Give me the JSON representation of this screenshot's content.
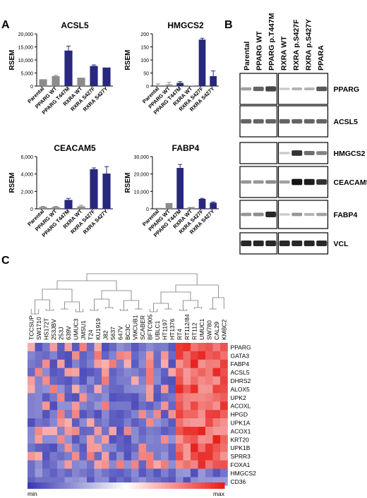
{
  "panel_labels": {
    "a": "A",
    "b": "B",
    "c": "C"
  },
  "chart_data": [
    {
      "type": "bar",
      "title": "ACSL5",
      "ylabel": "RSEM",
      "categories": [
        "Parental",
        "PPARG WT",
        "PPARG T447M",
        "RXRA WT",
        "RXRA S427F",
        "RXRA S427Y"
      ],
      "values": [
        2600,
        3800,
        13600,
        3200,
        7700,
        7100
      ],
      "errors": [
        0,
        300,
        1700,
        0,
        400,
        0
      ],
      "ylim": [
        0,
        20000
      ],
      "yticks": [
        "0",
        "5,000",
        "10,000",
        "15,000",
        "20,000"
      ],
      "ytick_values": [
        0,
        5000,
        10000,
        15000,
        20000
      ],
      "colors": [
        "#8c8c8c",
        "#8c8c8c",
        "#27287e",
        "#8c8c8c",
        "#27287e",
        "#27287e"
      ]
    },
    {
      "type": "bar",
      "title": "HMGCS2",
      "ylabel": "RSEM",
      "categories": [
        "Parental",
        "PPARG WT",
        "PPARG T447M",
        "RXRA WT",
        "RXRA S427F",
        "RXRA S427Y"
      ],
      "values": [
        3,
        6,
        12,
        2,
        178,
        38
      ],
      "errors": [
        5,
        8,
        5,
        0,
        5,
        20
      ],
      "ylim": [
        0,
        200
      ],
      "yticks": [
        "0",
        "50",
        "100",
        "150",
        "200"
      ],
      "ytick_values": [
        0,
        50,
        100,
        150,
        200
      ],
      "colors": [
        "#8c8c8c",
        "#8c8c8c",
        "#27287e",
        "#8c8c8c",
        "#27287e",
        "#27287e"
      ]
    },
    {
      "type": "bar",
      "title": "CEACAM5",
      "ylabel": "RSEM",
      "categories": [
        "Parental",
        "PPARG WT",
        "PPARG T447M",
        "RXRA WT",
        "RXRA S427F",
        "RXRA S427Y"
      ],
      "values": [
        220,
        220,
        1020,
        280,
        4550,
        4050
      ],
      "errors": [
        60,
        60,
        180,
        120,
        150,
        800
      ],
      "ylim": [
        0,
        6000
      ],
      "yticks": [
        "0",
        "2,000",
        "4,000",
        "6,000"
      ],
      "ytick_values": [
        0,
        2000,
        4000,
        6000
      ],
      "colors": [
        "#8c8c8c",
        "#8c8c8c",
        "#27287e",
        "#8c8c8c",
        "#27287e",
        "#27287e"
      ]
    },
    {
      "type": "bar",
      "title": "FABP4",
      "ylabel": "RSEM",
      "categories": [
        "Parental",
        "PPARG WT",
        "PPARG T447M",
        "RXRA WT",
        "RXRA S427F",
        "RXRA S427Y"
      ],
      "values": [
        500,
        3300,
        23500,
        1000,
        5700,
        3500
      ],
      "errors": [
        0,
        0,
        2000,
        0,
        300,
        400
      ],
      "ylim": [
        0,
        30000
      ],
      "yticks": [
        "0",
        "10,000",
        "20,000",
        "30,000"
      ],
      "ytick_values": [
        0,
        10000,
        20000,
        30000
      ],
      "colors": [
        "#8c8c8c",
        "#8c8c8c",
        "#27287e",
        "#8c8c8c",
        "#27287e",
        "#27287e"
      ]
    },
    {
      "type": "heatmap",
      "columns": [
        "TCCSUP",
        "SW1710",
        "HS172T",
        "253JBV",
        "253J",
        "639V",
        "UMUC3",
        "JMSU1",
        "T24",
        "KU1919",
        "J82",
        "5637",
        "647V",
        "BC3C",
        "VMCUB1",
        "SCABER",
        "BFTC905",
        "UBLC1",
        "HT1197",
        "HT1376",
        "RT4",
        "RT112/84",
        "RT112",
        "UMUC1",
        "SW780",
        "CAL29",
        "KMBC2"
      ],
      "rows": [
        "PPARG",
        "GATA3",
        "FABP4",
        "ACSL5",
        "DHRS2",
        "ALOX5",
        "UPK2",
        "ACOXL",
        "HPGD",
        "UPK1A",
        "ACOX1",
        "KRT20",
        "UPK1B",
        "SPRR3",
        "FOXA1",
        "HMGCS2",
        "CD36"
      ],
      "scale_min_label": "min",
      "scale_max_label": "max",
      "low_color": "#3a3ab4",
      "mid_color": "#ffffff",
      "high_color": "#e8201c",
      "high_block": {
        "rows_from": 0,
        "rows_to": 14,
        "cols_from": 20,
        "cols_to": 26
      }
    }
  ],
  "western_blot": {
    "lanes": [
      "Parental",
      "PPARG WT",
      "PPARG p.T447M",
      "RXRA WT",
      "RXRA p.S427F",
      "RXRA p.S427Y",
      "PPARA"
    ],
    "rows": [
      "PPARG",
      "ACSL5",
      "HMGCS2",
      "CEACAM5",
      "FABP4",
      "VCL"
    ],
    "intensity": [
      [
        0.25,
        0.55,
        0.7,
        0.05,
        0.15,
        0.15,
        0.6
      ],
      [
        0.55,
        0.55,
        0.55,
        0.55,
        0.55,
        0.55,
        0.55
      ],
      [
        0.02,
        0.02,
        0.02,
        0.05,
        0.8,
        0.5,
        0.4
      ],
      [
        0.3,
        0.3,
        0.35,
        0.25,
        0.95,
        0.9,
        0.8
      ],
      [
        0.3,
        0.35,
        0.85,
        0.05,
        0.3,
        0.15,
        0.25
      ],
      [
        0.85,
        0.85,
        0.85,
        0.85,
        0.85,
        0.85,
        0.85
      ]
    ]
  }
}
